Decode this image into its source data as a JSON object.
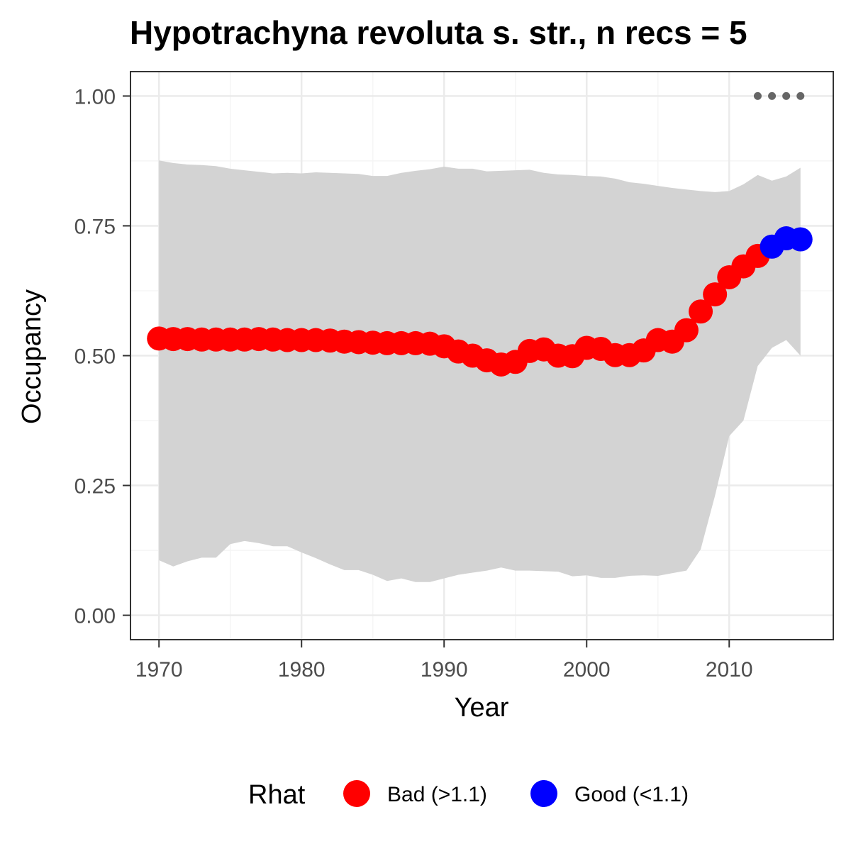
{
  "chart_data": {
    "type": "line",
    "title": "Hypotrachyna revoluta s. str., n recs = 5",
    "xlabel": "Year",
    "ylabel": "Occupancy",
    "xlim": [
      1968,
      2017.3
    ],
    "ylim": [
      -0.047,
      1.047
    ],
    "x_ticks": [
      1970,
      1980,
      1990,
      2000,
      2010
    ],
    "x_tick_labels": [
      "1970",
      "1980",
      "1990",
      "2000",
      "2010"
    ],
    "y_ticks": [
      0,
      0.25,
      0.5,
      0.75,
      1.0
    ],
    "y_tick_labels": [
      "0.00",
      "0.25",
      "0.50",
      "0.75",
      "1.00"
    ],
    "grid": true,
    "legend": {
      "title": "Rhat",
      "position": "bottom",
      "entries": [
        {
          "label": "Bad (>1.1)",
          "color": "#ff0000"
        },
        {
          "label": "Good (<1.1)",
          "color": "#0000ff"
        }
      ]
    },
    "series": [
      {
        "name": "Occupancy (mean)",
        "x": [
          1970,
          1971,
          1972,
          1973,
          1974,
          1975,
          1976,
          1977,
          1978,
          1979,
          1980,
          1981,
          1982,
          1983,
          1984,
          1985,
          1986,
          1987,
          1988,
          1989,
          1990,
          1991,
          1992,
          1993,
          1994,
          1995,
          1996,
          1997,
          1998,
          1999,
          2000,
          2001,
          2002,
          2003,
          2004,
          2005,
          2006,
          2007,
          2008,
          2009,
          2010,
          2011,
          2012,
          2013,
          2014,
          2015
        ],
        "y": [
          0.533,
          0.532,
          0.532,
          0.531,
          0.531,
          0.531,
          0.531,
          0.532,
          0.531,
          0.53,
          0.53,
          0.53,
          0.529,
          0.527,
          0.526,
          0.525,
          0.524,
          0.524,
          0.524,
          0.523,
          0.518,
          0.508,
          0.5,
          0.491,
          0.483,
          0.488,
          0.509,
          0.512,
          0.5,
          0.499,
          0.515,
          0.513,
          0.501,
          0.501,
          0.51,
          0.53,
          0.527,
          0.549,
          0.585,
          0.618,
          0.651,
          0.672,
          0.692,
          0.71,
          0.726,
          0.724
        ],
        "rhat": [
          "Bad",
          "Bad",
          "Bad",
          "Bad",
          "Bad",
          "Bad",
          "Bad",
          "Bad",
          "Bad",
          "Bad",
          "Bad",
          "Bad",
          "Bad",
          "Bad",
          "Bad",
          "Bad",
          "Bad",
          "Bad",
          "Bad",
          "Bad",
          "Bad",
          "Bad",
          "Bad",
          "Bad",
          "Bad",
          "Bad",
          "Bad",
          "Bad",
          "Bad",
          "Bad",
          "Bad",
          "Bad",
          "Bad",
          "Bad",
          "Bad",
          "Bad",
          "Bad",
          "Bad",
          "Bad",
          "Bad",
          "Bad",
          "Bad",
          "Bad",
          "Good",
          "Good",
          "Good"
        ]
      },
      {
        "name": "Credible interval",
        "x": [
          1970,
          1971,
          1972,
          1973,
          1974,
          1975,
          1976,
          1977,
          1978,
          1979,
          1980,
          1981,
          1982,
          1983,
          1984,
          1985,
          1986,
          1987,
          1988,
          1989,
          1990,
          1991,
          1992,
          1993,
          1994,
          1995,
          1996,
          1997,
          1998,
          1999,
          2000,
          2001,
          2002,
          2003,
          2004,
          2005,
          2006,
          2007,
          2008,
          2009,
          2010,
          2011,
          2012,
          2013,
          2014,
          2015
        ],
        "lower": [
          0.106,
          0.094,
          0.104,
          0.111,
          0.111,
          0.137,
          0.143,
          0.139,
          0.133,
          0.133,
          0.121,
          0.11,
          0.098,
          0.087,
          0.087,
          0.078,
          0.066,
          0.071,
          0.064,
          0.064,
          0.071,
          0.078,
          0.082,
          0.086,
          0.092,
          0.086,
          0.086,
          0.085,
          0.084,
          0.075,
          0.077,
          0.072,
          0.072,
          0.076,
          0.077,
          0.076,
          0.081,
          0.086,
          0.127,
          0.23,
          0.345,
          0.375,
          0.48,
          0.515,
          0.53,
          0.5
        ],
        "upper": [
          0.876,
          0.871,
          0.868,
          0.867,
          0.865,
          0.86,
          0.857,
          0.854,
          0.851,
          0.852,
          0.851,
          0.853,
          0.852,
          0.851,
          0.85,
          0.846,
          0.846,
          0.852,
          0.856,
          0.859,
          0.864,
          0.86,
          0.86,
          0.855,
          0.856,
          0.857,
          0.858,
          0.852,
          0.849,
          0.848,
          0.846,
          0.845,
          0.841,
          0.834,
          0.831,
          0.827,
          0.823,
          0.82,
          0.817,
          0.815,
          0.817,
          0.83,
          0.848,
          0.837,
          0.845,
          0.862
        ]
      },
      {
        "name": "Detection points",
        "x": [
          2012,
          2013,
          2014,
          2015
        ],
        "y": [
          1.0,
          1.0,
          1.0,
          1.0
        ]
      }
    ],
    "colors": {
      "ribbon": "#d3d3d3",
      "bad": "#ff0000",
      "good": "#0000ff",
      "detection": "#666666",
      "grid_major": "#ebebeb",
      "grid_minor": "#f5f5f5",
      "panel_border": "#333333"
    }
  }
}
